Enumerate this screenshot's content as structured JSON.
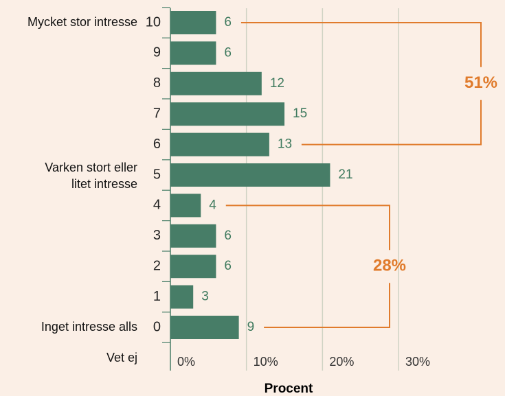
{
  "chart_data": {
    "type": "bar",
    "orientation": "horizontal",
    "x_label": "Procent",
    "categories": [
      "10",
      "9",
      "8",
      "7",
      "6",
      "5",
      "4",
      "3",
      "2",
      "1",
      "0"
    ],
    "descriptions": [
      "Mycket stor intresse",
      null,
      null,
      null,
      null,
      "Varken stort eller litet intresse",
      null,
      null,
      null,
      null,
      "Inget intresse alls"
    ],
    "no_answer_label": "Vet ej",
    "values": [
      6,
      6,
      12,
      15,
      13,
      21,
      4,
      6,
      6,
      3,
      9
    ],
    "color": "#477d67",
    "xlim": [
      0,
      44
    ],
    "xticks": [
      {
        "value": 0,
        "label": "0%"
      },
      {
        "value": 10,
        "label": "10%"
      },
      {
        "value": 20,
        "label": "20%"
      },
      {
        "value": 30,
        "label": "30%"
      }
    ],
    "grid": true,
    "groups": [
      {
        "value": 51,
        "label": "51%",
        "categories": [
          "10",
          "9",
          "8",
          "7",
          "6"
        ],
        "color": "#e07b2c"
      },
      {
        "value": 28,
        "label": "28%",
        "categories": [
          "4",
          "3",
          "2",
          "1",
          "0"
        ],
        "color": "#e07b2c"
      }
    ]
  }
}
